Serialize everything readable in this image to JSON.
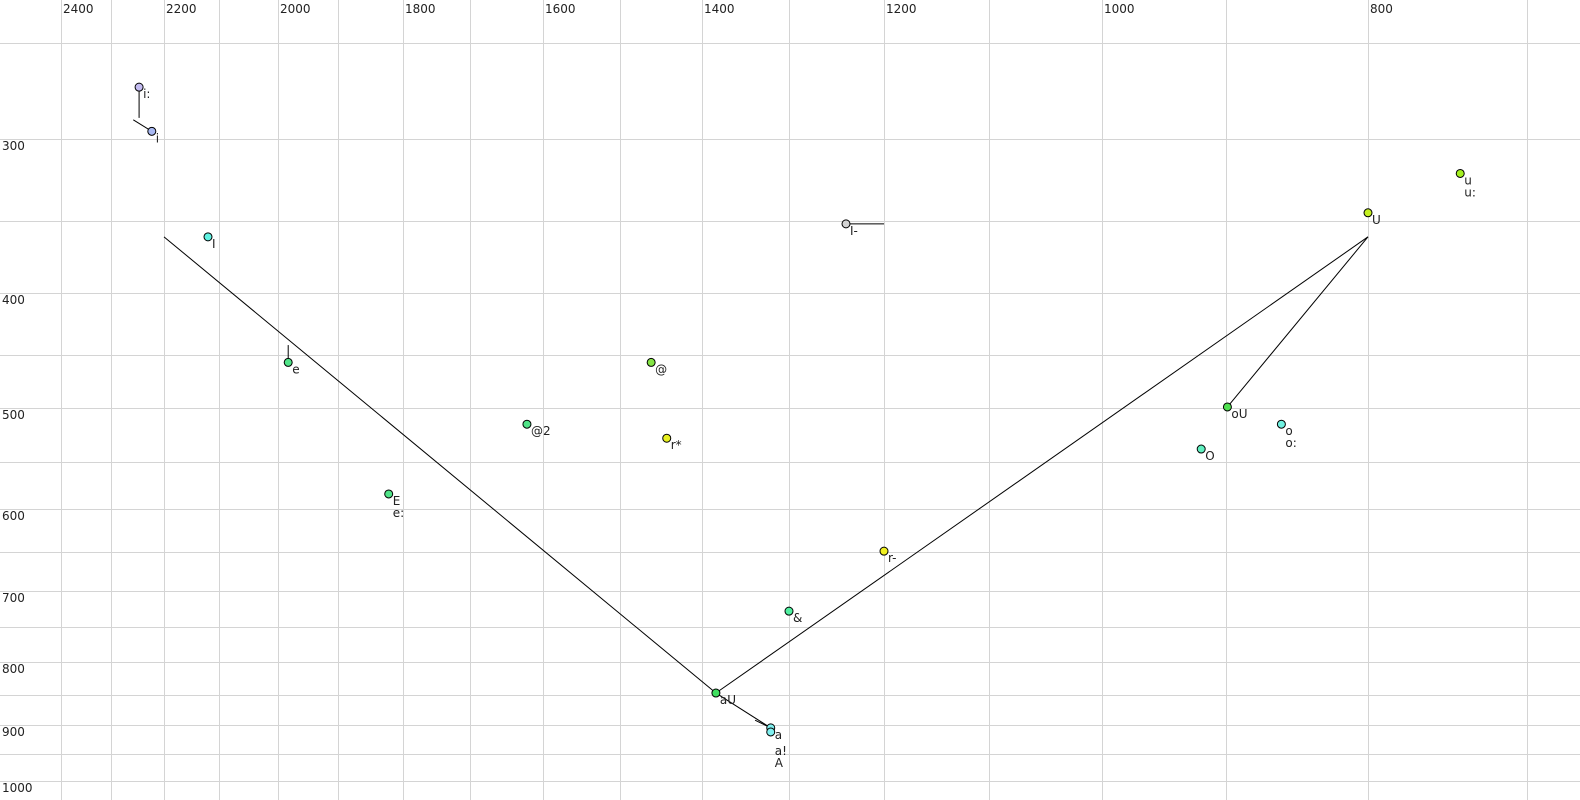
{
  "chart_data": {
    "type": "scatter",
    "title": "",
    "xlabel": "",
    "ylabel": "",
    "x_axis": {
      "reversed": true,
      "scale": "nonlinear (auditory)",
      "range": [
        2450,
        680
      ],
      "tick_labels": [
        2400,
        2200,
        2000,
        1800,
        1600,
        1400,
        1200,
        1000,
        800
      ],
      "gridlines": [
        2400,
        2300,
        2200,
        2100,
        2000,
        1900,
        1800,
        1700,
        1600,
        1500,
        1400,
        1300,
        1200,
        1100,
        1000,
        900,
        800,
        700
      ],
      "position": "top"
    },
    "y_axis": {
      "reversed": false,
      "scale": "nonlinear (auditory)",
      "range": [
        225,
        1020
      ],
      "tick_labels": [
        300,
        400,
        500,
        600,
        700,
        800,
        900,
        1000
      ],
      "gridlines": [
        250,
        300,
        350,
        400,
        450,
        500,
        550,
        600,
        650,
        700,
        750,
        800,
        850,
        900,
        950,
        1000
      ],
      "position": "left"
    },
    "grid": true,
    "grid_color": "#d4d4d4",
    "points": [
      {
        "label": "i:",
        "x": 2247,
        "y": 273,
        "color": "#c4bcf2"
      },
      {
        "label": "i",
        "x": 2223,
        "y": 296,
        "color": "#a8b8f2"
      },
      {
        "label": "I",
        "x": 2120,
        "y": 361,
        "color": "#60f2e2"
      },
      {
        "label": "e",
        "x": 1983,
        "y": 457,
        "color": "#50e488"
      },
      {
        "label": "E\ne:",
        "x": 1822,
        "y": 584,
        "color": "#50e488"
      },
      {
        "label": "@2",
        "x": 1622,
        "y": 515,
        "color": "#50e488"
      },
      {
        "label": "@",
        "x": 1462,
        "y": 457,
        "color": "#84e444"
      },
      {
        "label": "r*",
        "x": 1443,
        "y": 528,
        "color": "#e8f020"
      },
      {
        "label": "I-",
        "x": 1240,
        "y": 352,
        "color": "#d4d4d4"
      },
      {
        "label": "r-",
        "x": 1200,
        "y": 649,
        "color": "#f0f020"
      },
      {
        "label": "&",
        "x": 1300,
        "y": 728,
        "color": "#50f0a0"
      },
      {
        "label": "aU",
        "x": 1384,
        "y": 847,
        "color": "#40e060"
      },
      {
        "label": "a",
        "x": 1321,
        "y": 905,
        "color": "#80f0f0"
      },
      {
        "label": "a!\nA",
        "x": 1321,
        "y": 912,
        "color": "#80f0f0"
      },
      {
        "label": "oU",
        "x": 899,
        "y": 499,
        "color": "#50e050"
      },
      {
        "label": "o\no:",
        "x": 861,
        "y": 515,
        "color": "#70f0e0"
      },
      {
        "label": "O",
        "x": 920,
        "y": 538,
        "color": "#60f0c0"
      },
      {
        "label": "U",
        "x": 800,
        "y": 345,
        "color": "#c4f020"
      },
      {
        "label": "u\nu:",
        "x": 742,
        "y": 321,
        "color": "#a4f020"
      }
    ],
    "trajectories": [
      {
        "from": [
          2247,
          273
        ],
        "to": [
          2247,
          289
        ]
      },
      {
        "from": [
          2258,
          290
        ],
        "to": [
          2223,
          296
        ]
      },
      {
        "from": [
          1983,
          442
        ],
        "to": [
          1983,
          457
        ]
      },
      {
        "from": [
          1240,
          352
        ],
        "to": [
          1200,
          352
        ]
      },
      {
        "from": [
          2200,
          361
        ],
        "to": [
          1384,
          847
        ]
      },
      {
        "from": [
          1384,
          847
        ],
        "to": [
          1321,
          905
        ]
      },
      {
        "from": [
          1339,
          892
        ],
        "to": [
          1321,
          905
        ]
      },
      {
        "from": [
          1384,
          847
        ],
        "to": [
          800,
          361
        ]
      },
      {
        "from": [
          800,
          361
        ],
        "to": [
          899,
          499
        ]
      }
    ]
  }
}
